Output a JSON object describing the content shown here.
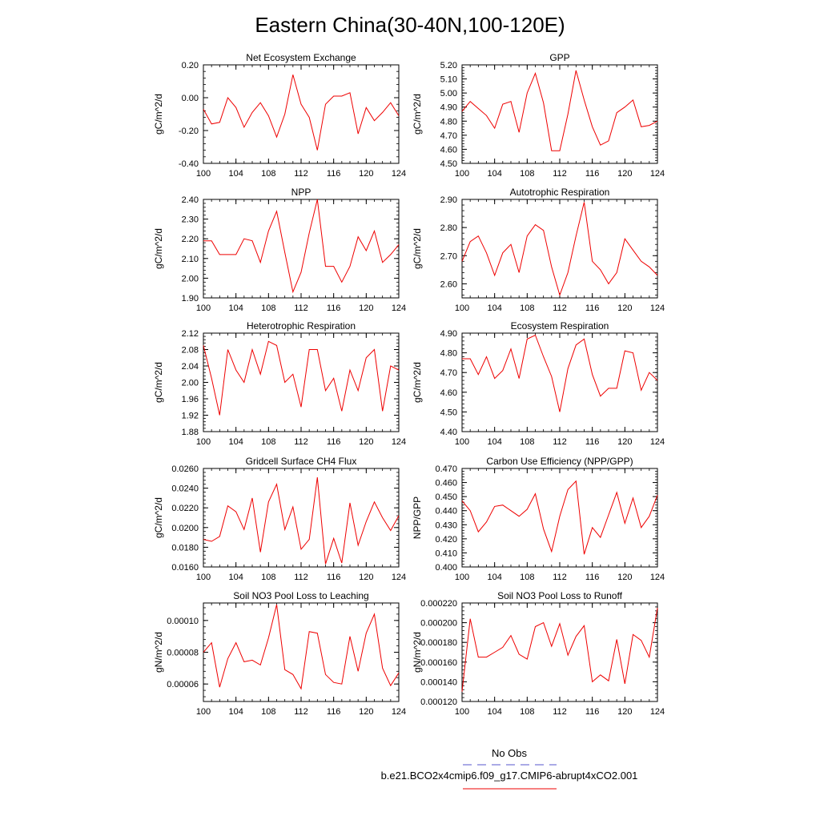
{
  "figure": {
    "title": "Eastern China(30-40N,100-120E)",
    "legend": {
      "obs_label": "No Obs",
      "model_label": "b.e21.BCO2x4cmip6.f09_g17.CMIP6-abrupt4xCO2.001",
      "obs_color": "#5555cc",
      "model_color": "#ee0000"
    },
    "line_color": "#ee0000"
  },
  "chart_data": [
    {
      "type": "line",
      "title": "Net Ecosystem Exchange",
      "ylabel": "gC/m^2/d",
      "xlabel": "",
      "xlim": [
        100,
        124
      ],
      "ylim": [
        -0.4,
        0.2
      ],
      "x_ticks": [
        "100",
        "104",
        "108",
        "112",
        "116",
        "120",
        "124"
      ],
      "y_ticks": [
        "-0.40",
        "-0.20",
        "0.00",
        "0.20"
      ],
      "x": [
        100,
        101,
        102,
        103,
        104,
        105,
        106,
        107,
        108,
        109,
        110,
        111,
        112,
        113,
        114,
        115,
        116,
        117,
        118,
        119,
        120,
        121,
        122,
        123,
        124
      ],
      "values": [
        -0.07,
        -0.16,
        -0.15,
        0.0,
        -0.06,
        -0.18,
        -0.09,
        -0.03,
        -0.11,
        -0.24,
        -0.1,
        0.14,
        -0.04,
        -0.12,
        -0.32,
        -0.04,
        0.01,
        0.01,
        0.03,
        -0.22,
        -0.06,
        -0.14,
        -0.09,
        -0.03,
        -0.11
      ]
    },
    {
      "type": "line",
      "title": "GPP",
      "ylabel": "gC/m^2/d",
      "xlabel": "",
      "xlim": [
        100,
        124
      ],
      "ylim": [
        4.5,
        5.2
      ],
      "x_ticks": [
        "100",
        "104",
        "108",
        "112",
        "116",
        "120",
        "124"
      ],
      "y_ticks": [
        "4.50",
        "4.60",
        "4.70",
        "4.80",
        "4.90",
        "5.00",
        "5.10",
        "5.20"
      ],
      "x": [
        100,
        101,
        102,
        103,
        104,
        105,
        106,
        107,
        108,
        109,
        110,
        111,
        112,
        113,
        114,
        115,
        116,
        117,
        118,
        119,
        120,
        121,
        122,
        123,
        124
      ],
      "values": [
        4.87,
        4.94,
        4.89,
        4.84,
        4.75,
        4.92,
        4.94,
        4.72,
        5.0,
        5.14,
        4.93,
        4.59,
        4.59,
        4.85,
        5.16,
        4.95,
        4.76,
        4.63,
        4.66,
        4.86,
        4.9,
        4.95,
        4.76,
        4.77,
        4.8
      ]
    },
    {
      "type": "line",
      "title": "NPP",
      "ylabel": "gC/m^2/d",
      "xlabel": "",
      "xlim": [
        100,
        124
      ],
      "ylim": [
        1.9,
        2.4
      ],
      "x_ticks": [
        "100",
        "104",
        "108",
        "112",
        "116",
        "120",
        "124"
      ],
      "y_ticks": [
        "1.90",
        "2.00",
        "2.10",
        "2.20",
        "2.30",
        "2.40"
      ],
      "x": [
        100,
        101,
        102,
        103,
        104,
        105,
        106,
        107,
        108,
        109,
        110,
        111,
        112,
        113,
        114,
        115,
        116,
        117,
        118,
        119,
        120,
        121,
        122,
        123,
        124
      ],
      "values": [
        2.19,
        2.19,
        2.12,
        2.12,
        2.12,
        2.2,
        2.19,
        2.08,
        2.24,
        2.34,
        2.13,
        1.93,
        2.03,
        2.23,
        2.4,
        2.06,
        2.06,
        1.98,
        2.06,
        2.21,
        2.14,
        2.24,
        2.08,
        2.12,
        2.17
      ]
    },
    {
      "type": "line",
      "title": "Autotrophic Respiration",
      "ylabel": "gC/m^2/d",
      "xlabel": "",
      "xlim": [
        100,
        124
      ],
      "ylim": [
        2.55,
        2.9
      ],
      "x_ticks": [
        "100",
        "104",
        "108",
        "112",
        "116",
        "120",
        "124"
      ],
      "y_ticks": [
        "2.60",
        "2.70",
        "2.80",
        "2.90"
      ],
      "x": [
        100,
        101,
        102,
        103,
        104,
        105,
        106,
        107,
        108,
        109,
        110,
        111,
        112,
        113,
        114,
        115,
        116,
        117,
        118,
        119,
        120,
        121,
        122,
        123,
        124
      ],
      "values": [
        2.68,
        2.75,
        2.77,
        2.71,
        2.63,
        2.71,
        2.74,
        2.64,
        2.77,
        2.81,
        2.79,
        2.66,
        2.56,
        2.64,
        2.77,
        2.89,
        2.68,
        2.65,
        2.6,
        2.64,
        2.76,
        2.72,
        2.68,
        2.66,
        2.63
      ]
    },
    {
      "type": "line",
      "title": "Heterotrophic Respiration",
      "ylabel": "gC/m^2/d",
      "xlabel": "",
      "xlim": [
        100,
        124
      ],
      "ylim": [
        1.88,
        2.12
      ],
      "x_ticks": [
        "100",
        "104",
        "108",
        "112",
        "116",
        "120",
        "124"
      ],
      "y_ticks": [
        "1.88",
        "1.92",
        "1.96",
        "2.00",
        "2.04",
        "2.08",
        "2.12"
      ],
      "x": [
        100,
        101,
        102,
        103,
        104,
        105,
        106,
        107,
        108,
        109,
        110,
        111,
        112,
        113,
        114,
        115,
        116,
        117,
        118,
        119,
        120,
        121,
        122,
        123,
        124
      ],
      "values": [
        2.09,
        2.01,
        1.92,
        2.08,
        2.03,
        2.0,
        2.08,
        2.02,
        2.1,
        2.09,
        2.0,
        2.02,
        1.94,
        2.08,
        2.08,
        1.98,
        2.01,
        1.93,
        2.03,
        1.98,
        2.06,
        2.08,
        1.93,
        2.04,
        2.03
      ]
    },
    {
      "type": "line",
      "title": "Ecosystem Respiration",
      "ylabel": "gC/m^2/d",
      "xlabel": "",
      "xlim": [
        100,
        124
      ],
      "ylim": [
        4.4,
        4.9
      ],
      "x_ticks": [
        "100",
        "104",
        "108",
        "112",
        "116",
        "120",
        "124"
      ],
      "y_ticks": [
        "4.40",
        "4.50",
        "4.60",
        "4.70",
        "4.80",
        "4.90"
      ],
      "x": [
        100,
        101,
        102,
        103,
        104,
        105,
        106,
        107,
        108,
        109,
        110,
        111,
        112,
        113,
        114,
        115,
        116,
        117,
        118,
        119,
        120,
        121,
        122,
        123,
        124
      ],
      "values": [
        4.77,
        4.77,
        4.69,
        4.78,
        4.67,
        4.71,
        4.82,
        4.67,
        4.87,
        4.89,
        4.78,
        4.68,
        4.5,
        4.72,
        4.84,
        4.87,
        4.69,
        4.58,
        4.62,
        4.62,
        4.81,
        4.8,
        4.61,
        4.7,
        4.66
      ]
    },
    {
      "type": "line",
      "title": "Gridcell Surface CH4 Flux",
      "ylabel": "gC/m^2/d",
      "xlabel": "",
      "xlim": [
        100,
        124
      ],
      "ylim": [
        0.016,
        0.026
      ],
      "x_ticks": [
        "100",
        "104",
        "108",
        "112",
        "116",
        "120",
        "124"
      ],
      "y_ticks": [
        "0.0160",
        "0.0180",
        "0.0200",
        "0.0220",
        "0.0240",
        "0.0260"
      ],
      "x": [
        100,
        101,
        102,
        103,
        104,
        105,
        106,
        107,
        108,
        109,
        110,
        111,
        112,
        113,
        114,
        115,
        116,
        117,
        118,
        119,
        120,
        121,
        122,
        123,
        124
      ],
      "values": [
        0.0188,
        0.0186,
        0.0191,
        0.0222,
        0.0216,
        0.0198,
        0.023,
        0.0175,
        0.0226,
        0.0244,
        0.0198,
        0.0221,
        0.0178,
        0.0188,
        0.0251,
        0.0163,
        0.0189,
        0.0164,
        0.0225,
        0.0182,
        0.0206,
        0.0226,
        0.021,
        0.0197,
        0.0212
      ]
    },
    {
      "type": "line",
      "title": "Carbon Use Efficiency (NPP/GPP)",
      "ylabel": "NPP/GPP",
      "xlabel": "",
      "xlim": [
        100,
        124
      ],
      "ylim": [
        0.4,
        0.47
      ],
      "x_ticks": [
        "100",
        "104",
        "108",
        "112",
        "116",
        "120",
        "124"
      ],
      "y_ticks": [
        "0.400",
        "0.410",
        "0.420",
        "0.430",
        "0.440",
        "0.450",
        "0.460",
        "0.470"
      ],
      "x": [
        100,
        101,
        102,
        103,
        104,
        105,
        106,
        107,
        108,
        109,
        110,
        111,
        112,
        113,
        114,
        115,
        116,
        117,
        118,
        119,
        120,
        121,
        122,
        123,
        124
      ],
      "values": [
        0.447,
        0.44,
        0.425,
        0.432,
        0.443,
        0.444,
        0.44,
        0.436,
        0.441,
        0.452,
        0.427,
        0.411,
        0.436,
        0.455,
        0.461,
        0.409,
        0.428,
        0.421,
        0.437,
        0.453,
        0.431,
        0.449,
        0.428,
        0.436,
        0.451
      ]
    },
    {
      "type": "line",
      "title": "Soil NO3 Pool Loss to Leaching",
      "ylabel": "gN/m^2/d",
      "xlabel": "",
      "xlim": [
        100,
        124
      ],
      "ylim": [
        4.9e-05,
        0.000111
      ],
      "x_ticks": [
        "100",
        "104",
        "108",
        "112",
        "116",
        "120",
        "124"
      ],
      "y_ticks": [
        "0.00006",
        "0.00008",
        "0.00010"
      ],
      "y_tick_values": [
        6e-05,
        8e-05,
        0.0001
      ],
      "x": [
        100,
        101,
        102,
        103,
        104,
        105,
        106,
        107,
        108,
        109,
        110,
        111,
        112,
        113,
        114,
        115,
        116,
        117,
        118,
        119,
        120,
        121,
        122,
        123,
        124
      ],
      "values": [
        8e-05,
        8.6e-05,
        5.8e-05,
        7.6e-05,
        8.6e-05,
        7.4e-05,
        7.5e-05,
        7.2e-05,
        8.9e-05,
        0.00011,
        6.9e-05,
        6.6e-05,
        5.7e-05,
        9.3e-05,
        9.2e-05,
        6.6e-05,
        6.1e-05,
        6e-05,
        9e-05,
        6.8e-05,
        9.2e-05,
        0.000104,
        7e-05,
        5.9e-05,
        6.7e-05
      ]
    },
    {
      "type": "line",
      "title": "Soil NO3 Pool Loss to Runoff",
      "ylabel": "gN/m^2/d",
      "xlabel": "",
      "xlim": [
        100,
        124
      ],
      "ylim": [
        0.00012,
        0.00022
      ],
      "x_ticks": [
        "100",
        "104",
        "108",
        "112",
        "116",
        "120",
        "124"
      ],
      "y_ticks": [
        "0.000120",
        "0.000140",
        "0.000160",
        "0.000180",
        "0.000200",
        "0.000220"
      ],
      "x": [
        100,
        101,
        102,
        103,
        104,
        105,
        106,
        107,
        108,
        109,
        110,
        111,
        112,
        113,
        114,
        115,
        116,
        117,
        118,
        119,
        120,
        121,
        122,
        123,
        124
      ],
      "values": [
        0.00013,
        0.000204,
        0.000165,
        0.000165,
        0.00017,
        0.000175,
        0.000187,
        0.000168,
        0.000163,
        0.000196,
        0.0002,
        0.000176,
        0.000199,
        0.000167,
        0.000186,
        0.000197,
        0.00014,
        0.000147,
        0.000141,
        0.000183,
        0.000138,
        0.000188,
        0.000182,
        0.000165,
        0.000215
      ]
    }
  ]
}
